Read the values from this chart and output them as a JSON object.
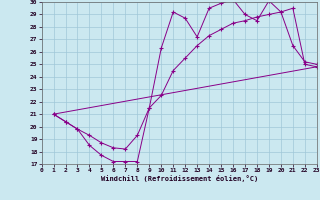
{
  "xlabel": "Windchill (Refroidissement éolien,°C)",
  "bg_color": "#cbe8f0",
  "grid_color": "#a0c8d8",
  "line_color": "#880088",
  "xlim": [
    0,
    23
  ],
  "ylim": [
    17,
    30
  ],
  "xticks": [
    0,
    1,
    2,
    3,
    4,
    5,
    6,
    7,
    8,
    9,
    10,
    11,
    12,
    13,
    14,
    15,
    16,
    17,
    18,
    19,
    20,
    21,
    22,
    23
  ],
  "yticks": [
    17,
    18,
    19,
    20,
    21,
    22,
    23,
    24,
    25,
    26,
    27,
    28,
    29,
    30
  ],
  "series": [
    {
      "x": [
        1,
        2,
        3,
        4,
        5,
        6,
        7,
        8,
        9,
        10,
        11,
        12,
        13,
        14,
        15,
        16,
        17,
        18,
        19,
        20,
        21,
        22,
        23
      ],
      "y": [
        21.0,
        20.4,
        19.8,
        18.5,
        17.7,
        17.2,
        17.2,
        17.2,
        21.5,
        26.3,
        29.2,
        28.7,
        27.2,
        29.5,
        29.9,
        30.2,
        29.0,
        28.5,
        30.1,
        29.2,
        26.5,
        25.2,
        25.0
      ],
      "marker": true
    },
    {
      "x": [
        1,
        2,
        3,
        4,
        5,
        6,
        7,
        8,
        9,
        10,
        11,
        12,
        13,
        14,
        15,
        16,
        17,
        18,
        19,
        20,
        21,
        22,
        23
      ],
      "y": [
        21.0,
        20.4,
        19.8,
        19.3,
        18.7,
        18.3,
        18.2,
        19.3,
        21.5,
        22.5,
        24.5,
        25.5,
        26.5,
        27.3,
        27.8,
        28.3,
        28.5,
        28.8,
        29.0,
        29.2,
        29.5,
        25.0,
        24.8
      ],
      "marker": true
    },
    {
      "x": [
        1,
        23
      ],
      "y": [
        21.0,
        24.8
      ],
      "marker": false
    }
  ]
}
